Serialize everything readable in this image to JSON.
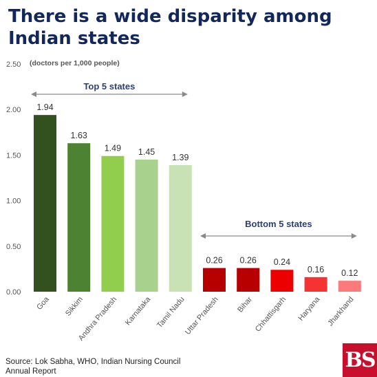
{
  "chart_data": {
    "type": "bar",
    "title": "There is a wide disparity among Indian states",
    "unit_note": "(doctors per 1,000 people)",
    "categories": [
      "Goa",
      "Sikkim",
      "Andhra Pradesh",
      "Karnataka",
      "Tamil Nadu",
      "Uttar Pradesh",
      "Bihar",
      "Chhattisgarh",
      "Haryana",
      "Jharkhand"
    ],
    "values": [
      1.94,
      1.63,
      1.49,
      1.45,
      1.39,
      0.26,
      0.26,
      0.24,
      0.16,
      0.12
    ],
    "value_labels": [
      "1.94",
      "1.63",
      "1.49",
      "1.45",
      "1.39",
      "0.26",
      "0.26",
      "0.24",
      "0.16",
      "0.12"
    ],
    "bar_colors": [
      "#33501f",
      "#4e8233",
      "#91ce4d",
      "#a7d18c",
      "#c8e2b6",
      "#b60000",
      "#b90000",
      "#ec0000",
      "#f63333",
      "#fb7b7b"
    ],
    "y_ticks": [
      0,
      0.5,
      1,
      1.5,
      2,
      2.5
    ],
    "y_tick_labels": [
      "0.00",
      "0.50",
      "1.00",
      "1.50",
      "2.00",
      "2.50"
    ],
    "ylim": [
      0,
      2.5
    ],
    "grid": false,
    "annotations": [
      {
        "text": "Top 5 states",
        "from_category": "Goa",
        "to_category": "Tamil Nadu"
      },
      {
        "text": "Bottom 5 states",
        "from_category": "Uttar Pradesh",
        "to_category": "Jharkhand"
      }
    ]
  },
  "source": "Source: Lok Sabha, WHO, Indian Nursing Council Annual Report",
  "logo_text": "BS",
  "colors": {
    "title": "#13285a",
    "annotation": "#2b3f73",
    "arrow": "#8a8a8a",
    "axis_text": "#555555",
    "logo_bg": "#c8102e"
  }
}
